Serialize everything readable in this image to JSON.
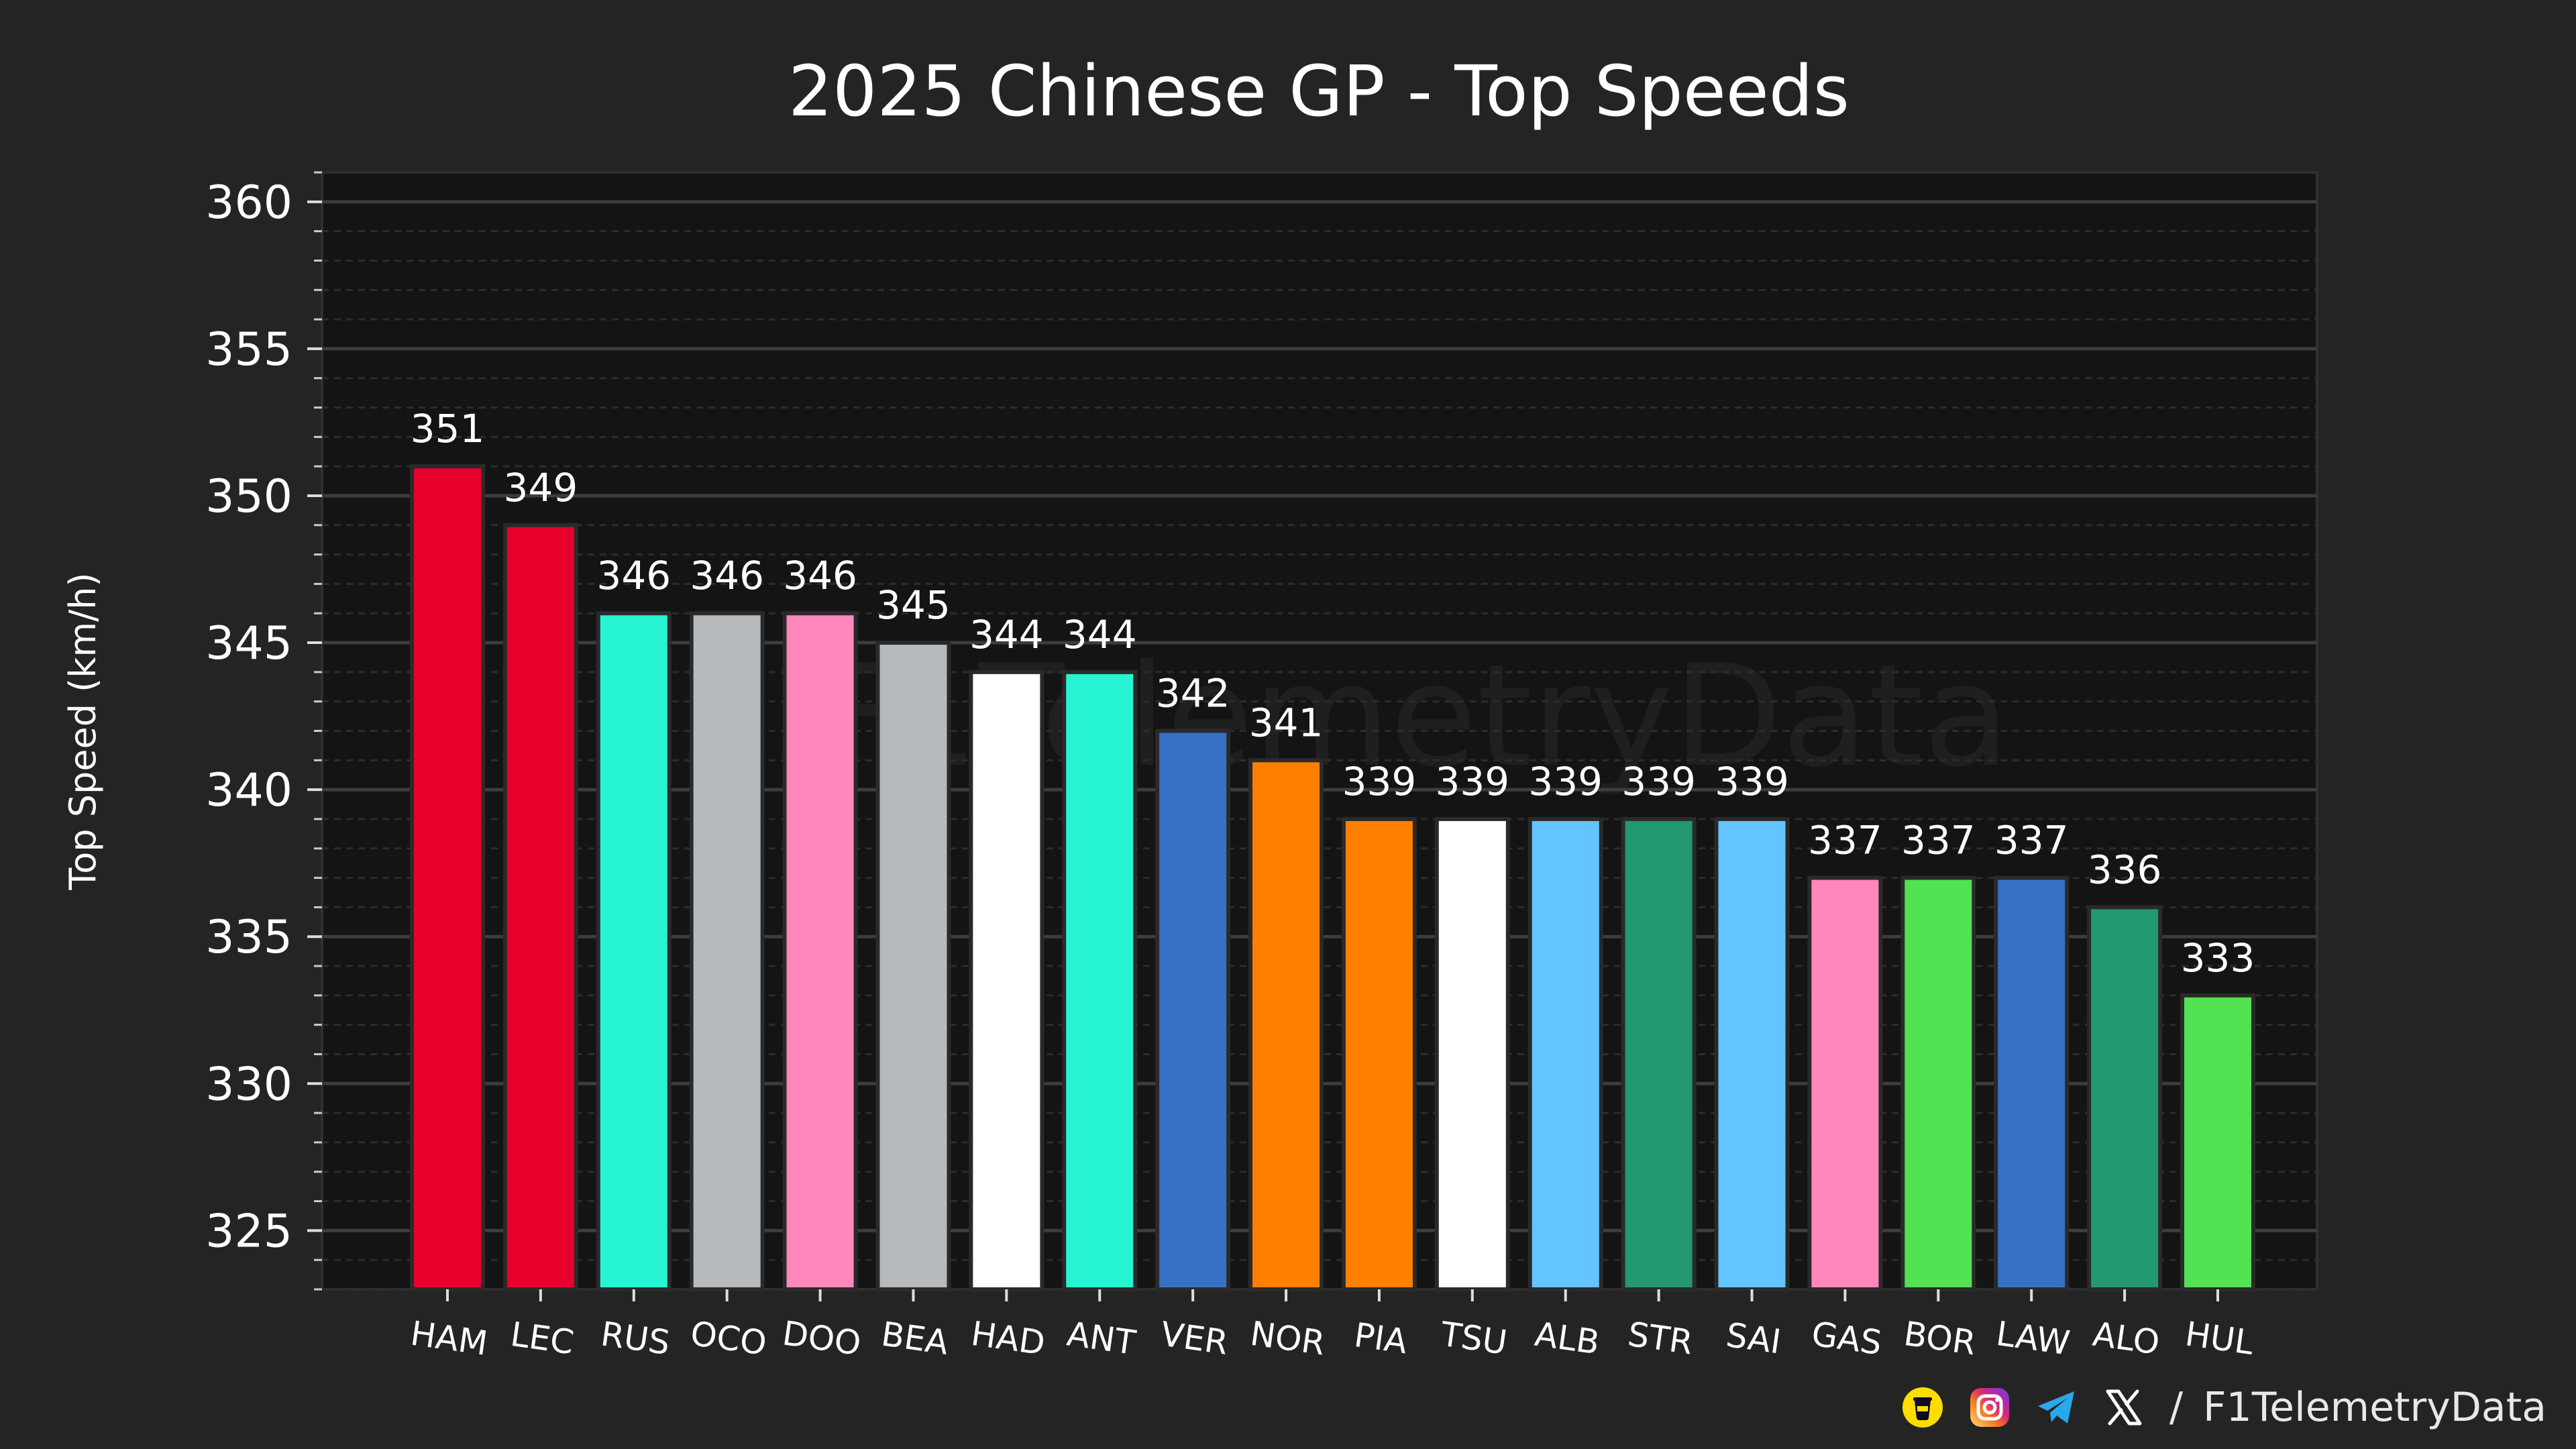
{
  "chart_data": {
    "type": "bar",
    "title": "2025 Chinese GP - Top Speeds",
    "xlabel": "",
    "ylabel": "Top Speed (km/h)",
    "ylim": [
      323,
      361
    ],
    "yticks": [
      325,
      330,
      335,
      340,
      345,
      350,
      355,
      360
    ],
    "grid": true,
    "categories": [
      "HAM",
      "LEC",
      "RUS",
      "OCO",
      "DOO",
      "BEA",
      "HAD",
      "ANT",
      "VER",
      "NOR",
      "PIA",
      "TSU",
      "ALB",
      "STR",
      "SAI",
      "GAS",
      "BOR",
      "LAW",
      "ALO",
      "HUL"
    ],
    "values": [
      351,
      349,
      346,
      346,
      346,
      345,
      344,
      344,
      342,
      341,
      339,
      339,
      339,
      339,
      339,
      337,
      337,
      337,
      336,
      333
    ],
    "colors": [
      "#E8002D",
      "#E8002D",
      "#27F4D2",
      "#B6BABD",
      "#FF87BC",
      "#B6BABD",
      "#FFFFFF",
      "#27F4D2",
      "#3671C6",
      "#FF8000",
      "#FF8000",
      "#FFFFFF",
      "#64C4FF",
      "#229971",
      "#64C4FF",
      "#FF87BC",
      "#52E252",
      "#3671C6",
      "#229971",
      "#52E252"
    ],
    "watermark": "F1TelemetryData"
  },
  "footer": {
    "separator": "/",
    "handle": "F1TelemetryData",
    "icons": [
      "buymeacoffee-icon",
      "instagram-icon",
      "telegram-icon",
      "x-icon"
    ]
  }
}
